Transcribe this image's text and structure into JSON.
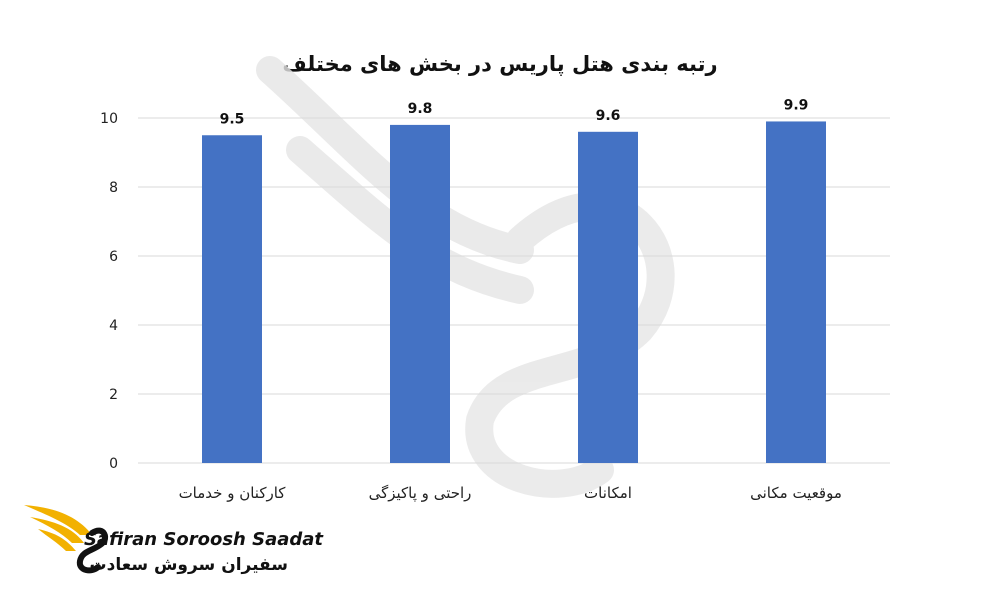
{
  "chart_data": {
    "type": "bar",
    "title": "رتبه بندی هتل پاریس در بخش های مختلف",
    "categories": [
      "کارکنان و خدمات",
      "راحتی و پاکیزگی",
      "امکانات",
      "موقعیت مکانی"
    ],
    "values": [
      9.5,
      9.8,
      9.6,
      9.9
    ],
    "data_labels": [
      "9.5",
      "9.8",
      "9.6",
      "9.9"
    ],
    "ylim": [
      0,
      10
    ],
    "yticks": [
      0,
      2,
      4,
      6,
      8,
      10
    ],
    "grid": true,
    "legend": "none",
    "bar_color": "#4472C4"
  },
  "brand": {
    "latin": "Safiran Soroosh Saadat",
    "persian": "سفیران سروش سعادت",
    "accent_color": "#F2B100"
  }
}
